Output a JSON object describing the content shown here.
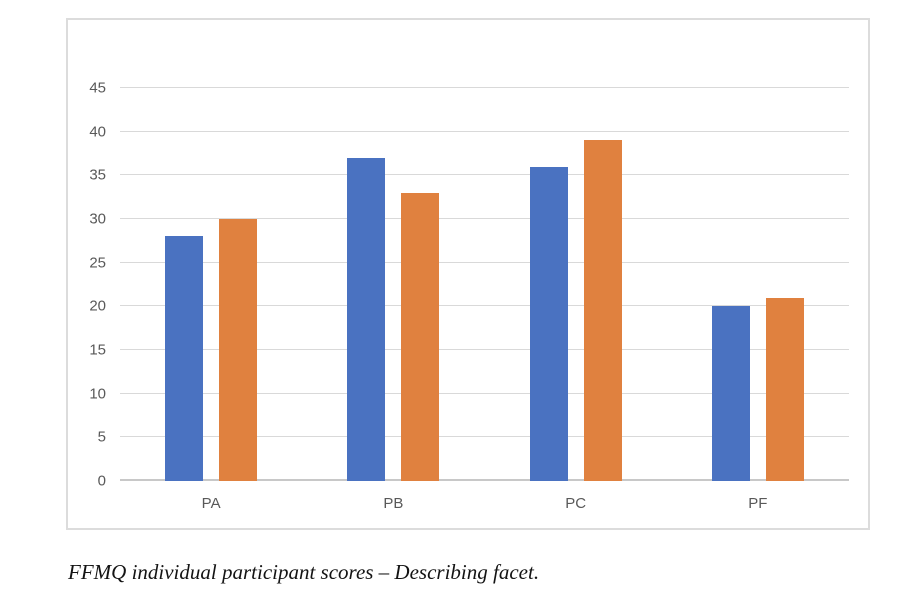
{
  "figure": {
    "caption": "FFMQ individual participant scores – Describing facet."
  },
  "chart_data": {
    "type": "bar",
    "title": "",
    "xlabel": "",
    "ylabel": "",
    "categories": [
      "PA",
      "PB",
      "PC",
      "PF"
    ],
    "series": [
      {
        "color": "#4A72C1",
        "values": [
          28,
          37,
          36,
          20
        ]
      },
      {
        "color": "#E0813F",
        "values": [
          30,
          33,
          39,
          21
        ]
      }
    ],
    "ylim": [
      0,
      45
    ],
    "yticks": [
      0,
      5,
      10,
      15,
      20,
      25,
      30,
      35,
      40,
      45
    ],
    "grid": true,
    "legend": "none"
  }
}
